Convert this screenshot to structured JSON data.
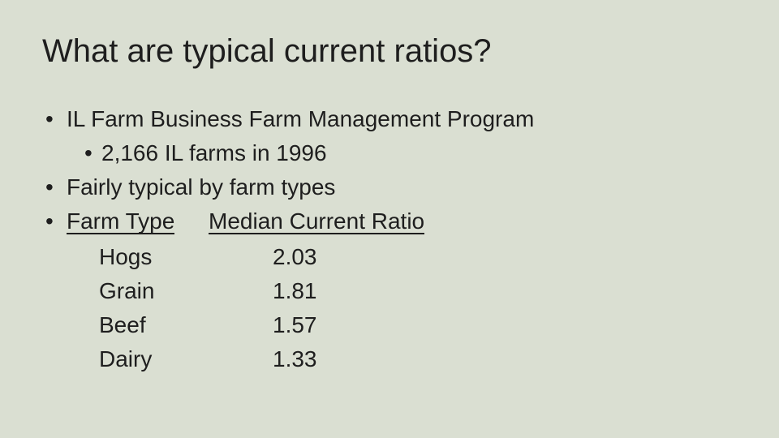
{
  "slide": {
    "colors": {
      "background": "#dadfd2",
      "text": "#1e1e1e"
    },
    "bullet_char": "•",
    "title": "What are typical current ratios?",
    "bullets": {
      "b1": "IL Farm Business Farm Management Program",
      "b2": "2,166 IL farms in 1996",
      "b3": "Fairly typical by farm types"
    },
    "table": {
      "header_col1": "Farm Type",
      "header_col2": "Median Current Ratio",
      "rows": [
        {
          "farm_type": "Hogs",
          "median_current_ratio": "2.03"
        },
        {
          "farm_type": "Grain",
          "median_current_ratio": "1.81"
        },
        {
          "farm_type": "Beef",
          "median_current_ratio": "1.57"
        },
        {
          "farm_type": "Dairy",
          "median_current_ratio": "1.33"
        }
      ]
    }
  }
}
